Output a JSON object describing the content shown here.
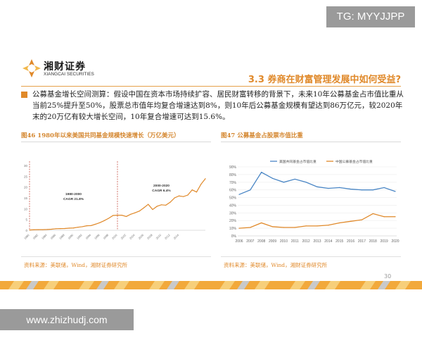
{
  "watermark_top": "TG: MYYJJPP",
  "watermark_bottom": "www.zhizhudj.com",
  "logo": {
    "cn": "湘财证券",
    "en": "XIANGCAI SECURITIES"
  },
  "section_title": "3.3 券商在财富管理发展中如何受益?",
  "paragraph": "公募基金增长空间测算：假设中国在资本市场持续扩容、居民财富转移的背景下，未来10年公募基金占市值比重从当前25%提升至50%，股票总市值年均复合增速达到8%，则10年后公募基金规模有望达到86万亿元，较2020年末的20万亿有较大增长空间，10年复合增速可达到15.6%。",
  "page_number": "30",
  "colors": {
    "accent": "#e0892a",
    "series_blue": "#4a86c5",
    "series_orange": "#e0892a"
  },
  "charts": [
    {
      "title": "图46 1980年以来美国共同基金规模快速增长（万亿美元）",
      "source": "资料来源：美联储，Wind，湘财证券研究所",
      "annotations": [
        {
          "text_line1": "1980-2000",
          "text_line2": "CAGR 21.8%"
        },
        {
          "text_line1": "2000-2020",
          "text_line2": "CAGR 6.4%"
        }
      ]
    },
    {
      "title": "图47 公募基金占股票市值比重",
      "source": "资料来源：美联储，Wind，湘财证券研究所"
    }
  ],
  "chart_data": [
    {
      "type": "line",
      "title": "图46 1980年以来美国共同基金规模快速增长（万亿美元）",
      "x": [
        1980,
        1981,
        1982,
        1983,
        1984,
        1985,
        1986,
        1987,
        1988,
        1989,
        1990,
        1991,
        1992,
        1993,
        1994,
        1995,
        1996,
        1997,
        1998,
        1999,
        2000,
        2001,
        2002,
        2003,
        2004,
        2005,
        2006,
        2007,
        2008,
        2009,
        2010,
        2011,
        2012,
        2013,
        2014,
        2015,
        2016,
        2017,
        2018,
        2019,
        2020
      ],
      "series": [
        {
          "values": [
            0.13,
            0.24,
            0.29,
            0.29,
            0.37,
            0.5,
            0.72,
            0.77,
            0.81,
            0.98,
            1.07,
            1.4,
            1.65,
            2.07,
            2.16,
            2.81,
            3.53,
            4.47,
            5.53,
            6.85,
            6.96,
            6.97,
            6.38,
            7.4,
            8.1,
            8.9,
            10.4,
            12.0,
            9.6,
            11.1,
            11.8,
            11.6,
            13.0,
            15.0,
            15.9,
            15.6,
            16.3,
            18.7,
            17.7,
            21.3,
            23.9
          ]
        }
      ],
      "x_tick_labels": [
        "1980",
        "1982",
        "1984",
        "1986",
        "1988",
        "1990",
        "1992",
        "1994",
        "1996",
        "1998",
        "2000",
        "2002",
        "2004",
        "2006",
        "2008",
        "2010",
        "2012",
        "2014"
      ],
      "yticks": [
        0,
        5,
        10,
        15,
        20,
        25,
        30
      ],
      "ylim": [
        0,
        30
      ],
      "vlines": [
        1980,
        2000
      ],
      "grid": false
    },
    {
      "type": "line",
      "title": "图47 公募基金占股票市值比重",
      "x": [
        2006,
        2007,
        2008,
        2009,
        2010,
        2011,
        2012,
        2013,
        2014,
        2015,
        2016,
        2017,
        2018,
        2019,
        2020
      ],
      "series": [
        {
          "name": "美国共同基金占市值比重",
          "values": [
            54,
            60,
            83,
            75,
            70,
            74,
            70,
            64,
            62,
            63,
            61,
            60,
            60,
            63,
            58
          ]
        },
        {
          "name": "中国公募基金占市值比重",
          "values": [
            10,
            11,
            17,
            12,
            11,
            11,
            13,
            13,
            14,
            17,
            19,
            21,
            29,
            25,
            25
          ]
        }
      ],
      "yticks": [
        0,
        10,
        20,
        30,
        40,
        50,
        60,
        70,
        80,
        90
      ],
      "ytick_labels": [
        "0%",
        "10%",
        "20%",
        "30%",
        "40%",
        "50%",
        "60%",
        "70%",
        "80%",
        "90%"
      ],
      "ylim": [
        0,
        90
      ],
      "legend": "top",
      "grid": true
    }
  ]
}
